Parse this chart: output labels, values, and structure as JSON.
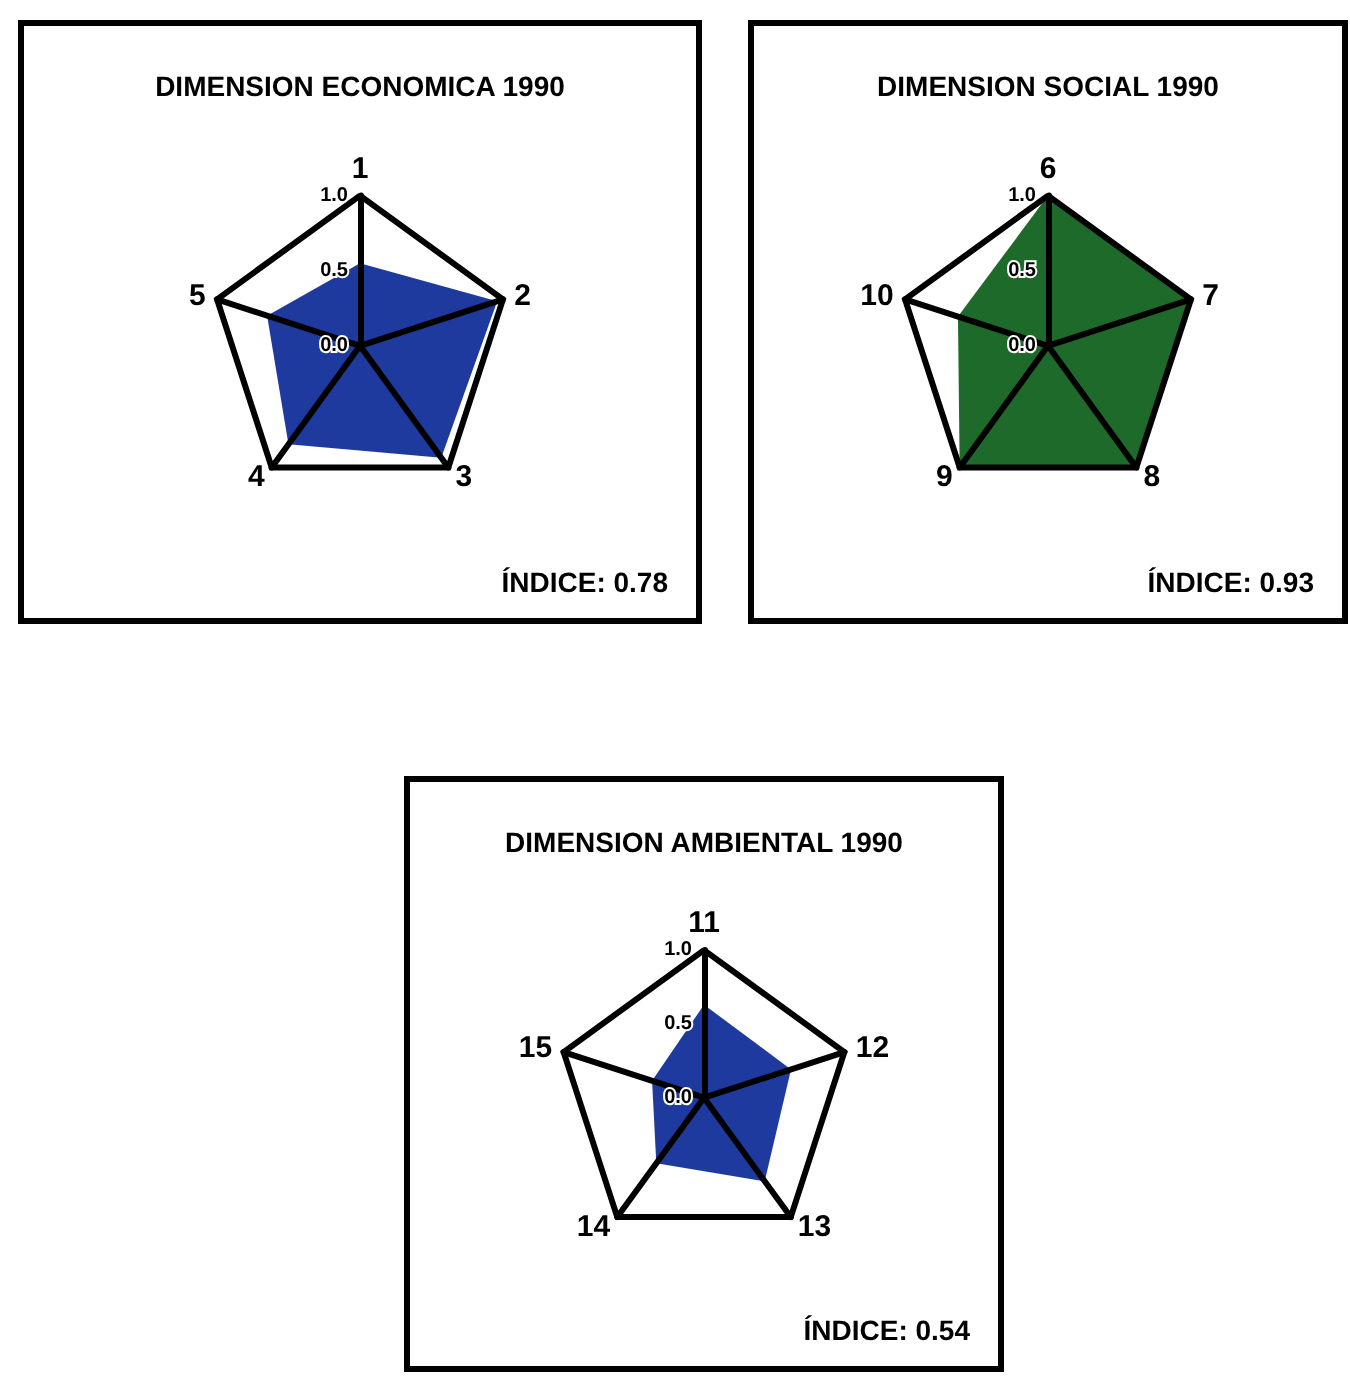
{
  "chart_data": [
    {
      "type": "radar",
      "title": "DIMENSION ECONOMICA 1990",
      "categories": [
        "1",
        "2",
        "3",
        "4",
        "5"
      ],
      "series": [
        {
          "color": "#1f3a9e",
          "values": [
            0.55,
            0.96,
            0.92,
            0.81,
            0.65
          ]
        }
      ],
      "ylim": [
        0,
        1
      ],
      "yticks": [
        {
          "value": 0,
          "label": "0.0"
        },
        {
          "value": 0.5,
          "label": "0.5"
        },
        {
          "value": 1,
          "label": "1.0"
        }
      ],
      "annotations": [
        "ÍNDICE: 0.78"
      ]
    },
    {
      "type": "radar",
      "title": "DIMENSION SOCIAL 1990",
      "categories": [
        "6",
        "7",
        "8",
        "9",
        "10"
      ],
      "series": [
        {
          "color": "#1e6a2a",
          "values": [
            1,
            1,
            1,
            1,
            0.63
          ]
        }
      ],
      "ylim": [
        0,
        1
      ],
      "yticks": [
        {
          "value": 0,
          "label": "0.0"
        },
        {
          "value": 0.5,
          "label": "0.5"
        },
        {
          "value": 1,
          "label": "1.0"
        }
      ],
      "annotations": [
        "ÍNDICE: 0.93"
      ]
    },
    {
      "type": "radar",
      "title": "DIMENSION AMBIENTAL 1990",
      "categories": [
        "11",
        "12",
        "13",
        "14",
        "15"
      ],
      "series": [
        {
          "color": "#1f3a9e",
          "values": [
            0.63,
            0.62,
            0.7,
            0.55,
            0.37
          ]
        }
      ],
      "ylim": [
        0,
        1
      ],
      "yticks": [
        {
          "value": 0,
          "label": "0.0"
        },
        {
          "value": 0.5,
          "label": "0.5"
        },
        {
          "value": 1,
          "label": "1.0"
        }
      ],
      "annotations": [
        "ÍNDICE: 0.54"
      ]
    }
  ]
}
